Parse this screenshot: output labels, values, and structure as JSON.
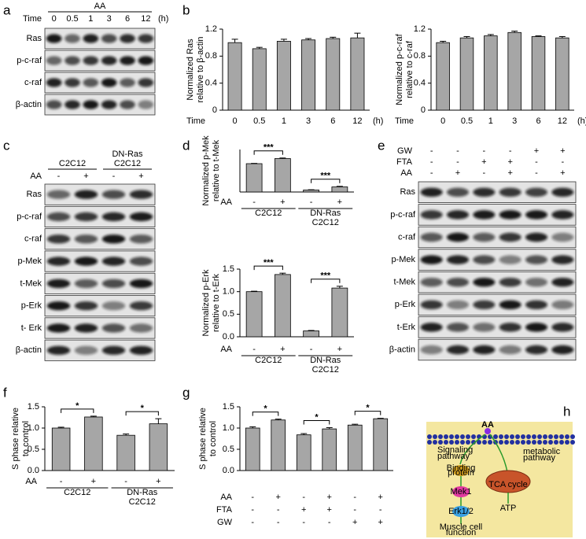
{
  "panels": [
    "a",
    "b",
    "c",
    "d",
    "e",
    "f",
    "g",
    "h"
  ],
  "blots": {
    "a": {
      "group": "AA",
      "row_label": "Time",
      "lanes": [
        "0",
        "0.5",
        "1",
        "3",
        "6",
        "12"
      ],
      "unit": "(h)",
      "rows": [
        "Ras",
        "p-c-raf",
        "c-raf",
        "β-actin"
      ]
    },
    "c": {
      "groups": [
        {
          "lines": [
            "C2C12"
          ]
        },
        {
          "lines": [
            "DN-Ras",
            "C2C12"
          ]
        }
      ],
      "condition": {
        "name": "AA",
        "signs": [
          "-",
          "+",
          "-",
          "+"
        ]
      },
      "rows": [
        "Ras",
        "p-c-raf",
        "c-raf",
        "p-Mek",
        "t-Mek",
        "p-Erk",
        "t- Erk",
        "β-actin"
      ]
    },
    "e": {
      "conditions": [
        {
          "name": "GW",
          "signs": [
            "-",
            "-",
            "-",
            "-",
            "+",
            "+"
          ]
        },
        {
          "name": "FTA",
          "signs": [
            "-",
            "-",
            "+",
            "+",
            "-",
            "-"
          ]
        },
        {
          "name": "AA",
          "signs": [
            "-",
            "+",
            "-",
            "+",
            "-",
            "+"
          ]
        }
      ],
      "rows": [
        "Ras",
        "p-c-raf",
        "c-raf",
        "p-Mek",
        "t-Mek",
        "p-Erk",
        "t-Erk",
        "β-actin"
      ]
    }
  },
  "chart_data": [
    {
      "type": "bar",
      "ylabel": [
        "Normalized Ras",
        "relative to β-actin"
      ],
      "x_label": "Time",
      "unit": "(h)",
      "categories": [
        "0",
        "0.5",
        "1",
        "3",
        "6",
        "12"
      ],
      "values": [
        1.0,
        0.91,
        1.02,
        1.04,
        1.06,
        1.07
      ],
      "errors": [
        0.05,
        0.02,
        0.03,
        0.02,
        0.02,
        0.07
      ],
      "color": "#a6a6a6",
      "ylim": [
        0,
        1.2
      ],
      "yticks": [
        0,
        0.4,
        0.8,
        1.2
      ]
    },
    {
      "type": "bar",
      "ylabel": [
        "Normalized p-c-raf",
        "relative to c-raf"
      ],
      "x_label": "Time",
      "unit": "(h)",
      "categories": [
        "0",
        "0.5",
        "1",
        "3",
        "6",
        "12"
      ],
      "values": [
        1.0,
        1.07,
        1.1,
        1.15,
        1.09,
        1.07
      ],
      "errors": [
        0.02,
        0.02,
        0.02,
        0.02,
        0.01,
        0.02
      ],
      "color": "#a6a6a6",
      "ylim": [
        0,
        1.2
      ],
      "yticks": [
        0,
        0.4,
        0.8,
        1.2
      ]
    },
    {
      "type": "bar",
      "ylabel": [
        "Normalized p-Mek",
        "relative to t-Mek"
      ],
      "values": [
        1.0,
        1.18,
        0.07,
        0.18
      ],
      "errors": [
        0.01,
        0.02,
        0.01,
        0.02
      ],
      "color": "#a6a6a6",
      "ylim": [
        0,
        1.5
      ],
      "conditions": [
        {
          "name": "AA",
          "signs": [
            "-",
            "+",
            "-",
            "+"
          ]
        }
      ],
      "groups": [
        {
          "lines": [
            "C2C12"
          ],
          "bars": [
            0,
            1
          ]
        },
        {
          "lines": [
            "DN-Ras",
            "C2C12"
          ],
          "bars": [
            2,
            3
          ]
        }
      ],
      "brackets": [
        {
          "text": "***",
          "bars": [
            0,
            1
          ]
        },
        {
          "text": "***",
          "bars": [
            2,
            3
          ]
        }
      ]
    },
    {
      "type": "bar",
      "ylabel": [
        "Normalized p-Erk",
        "relative to t-Erk"
      ],
      "values": [
        1.0,
        1.38,
        0.13,
        1.08
      ],
      "errors": [
        0.01,
        0.03,
        0.01,
        0.04
      ],
      "color": "#a6a6a6",
      "ylim": [
        0,
        1.5
      ],
      "yticks": [
        {
          "value": 0,
          "label": "0.0"
        },
        0.5,
        {
          "value": 1,
          "label": "1.0"
        },
        1.5
      ],
      "conditions": [
        {
          "name": "AA",
          "signs": [
            "-",
            "+",
            "-",
            "+"
          ]
        }
      ],
      "groups": [
        {
          "lines": [
            "C2C12"
          ],
          "bars": [
            0,
            1
          ]
        },
        {
          "lines": [
            "DN-Ras",
            "C2C12"
          ],
          "bars": [
            2,
            3
          ]
        }
      ],
      "brackets": [
        {
          "text": "***",
          "bars": [
            0,
            1
          ]
        },
        {
          "text": "***",
          "bars": [
            2,
            3
          ]
        }
      ]
    },
    {
      "type": "bar",
      "ylabel": [
        "S phase relative",
        "to control"
      ],
      "values": [
        1.0,
        1.26,
        0.83,
        1.1
      ],
      "errors": [
        0.02,
        0.02,
        0.03,
        0.12
      ],
      "color": "#a6a6a6",
      "ylim": [
        0,
        1.5
      ],
      "yticks": [
        {
          "value": 0,
          "label": "0.0"
        },
        0.5,
        {
          "value": 1,
          "label": "1.0"
        },
        1.5
      ],
      "conditions": [
        {
          "name": "AA",
          "signs": [
            "-",
            "+",
            "-",
            "+"
          ]
        }
      ],
      "groups": [
        {
          "lines": [
            "C2C12"
          ],
          "bars": [
            0,
            1
          ]
        },
        {
          "lines": [
            "DN-Ras",
            "C2C12"
          ],
          "bars": [
            2,
            3
          ]
        }
      ],
      "brackets": [
        {
          "text": "*",
          "bars": [
            0,
            1
          ]
        },
        {
          "text": "*",
          "bars": [
            2,
            3
          ]
        }
      ]
    },
    {
      "type": "bar",
      "ylabel": [
        "S phase relative",
        "to control"
      ],
      "values": [
        1.0,
        1.19,
        0.84,
        0.98,
        1.07,
        1.22
      ],
      "errors": [
        0.03,
        0.02,
        0.03,
        0.03,
        0.02,
        0.01
      ],
      "color": "#a6a6a6",
      "ylim": [
        0,
        1.5
      ],
      "yticks": [
        {
          "value": 0,
          "label": "0.0"
        },
        0.5,
        {
          "value": 1,
          "label": "1.0"
        },
        1.5
      ],
      "conditions": [
        {
          "name": "AA",
          "signs": [
            "-",
            "+",
            "-",
            "+",
            "-",
            "+"
          ]
        },
        {
          "name": "FTA",
          "signs": [
            "-",
            "-",
            "+",
            "+",
            "-",
            "-"
          ]
        },
        {
          "name": "GW",
          "signs": [
            "-",
            "-",
            "-",
            "-",
            "+",
            "+"
          ]
        }
      ],
      "brackets": [
        {
          "text": "*",
          "bars": [
            0,
            1
          ]
        },
        {
          "text": "*",
          "bars": [
            2,
            3
          ]
        },
        {
          "text": "*",
          "bars": [
            4,
            5
          ]
        }
      ]
    }
  ],
  "diagram": {
    "ligand": "AA",
    "left_pathway": [
      "Signaling",
      "pathway"
    ],
    "right_pathway": [
      "metabolic",
      "pathway"
    ],
    "nodes": [
      [
        "Binding",
        "protein"
      ],
      [
        "Mek1"
      ],
      [
        "Erk1/2"
      ]
    ],
    "output_left": [
      "Muscle cell",
      "function"
    ],
    "organelle": "TCA cycle",
    "output_right": "ATP"
  }
}
